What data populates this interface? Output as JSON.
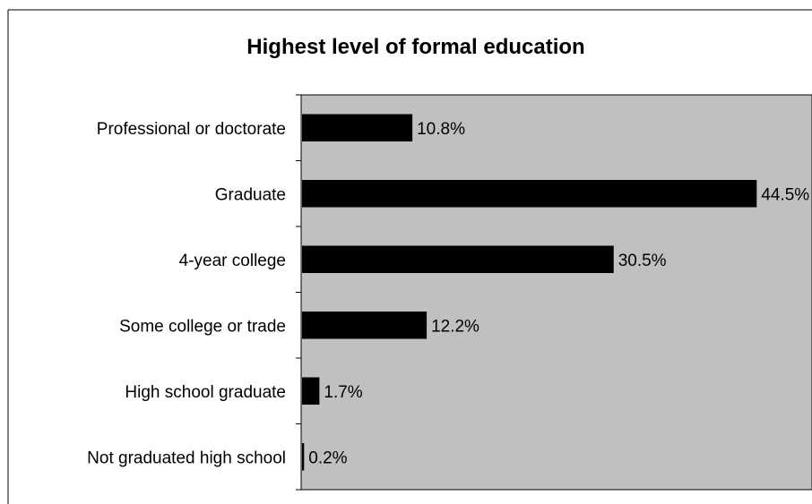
{
  "chart_data": {
    "type": "bar",
    "orientation": "horizontal",
    "title": "Highest level of formal education",
    "xlabel": "",
    "ylabel": "",
    "categories": [
      "Professional or doctorate",
      "Graduate",
      "4-year college",
      "Some college or trade",
      "High school graduate",
      "Not graduated high school"
    ],
    "values": [
      10.8,
      44.5,
      30.5,
      12.2,
      1.7,
      0.2
    ],
    "data_labels": [
      "10.8%",
      "44.5%",
      "30.5%",
      "12.2%",
      "1.7%",
      "0.2%"
    ],
    "value_unit": "%",
    "xlim": [
      0,
      50
    ],
    "grid": false,
    "legend": "none",
    "colors": {
      "bar": "#000000",
      "plot_background": "#c0c0c0",
      "page_background": "#ffffff",
      "axis": "#000000",
      "frame": "#000000"
    }
  }
}
